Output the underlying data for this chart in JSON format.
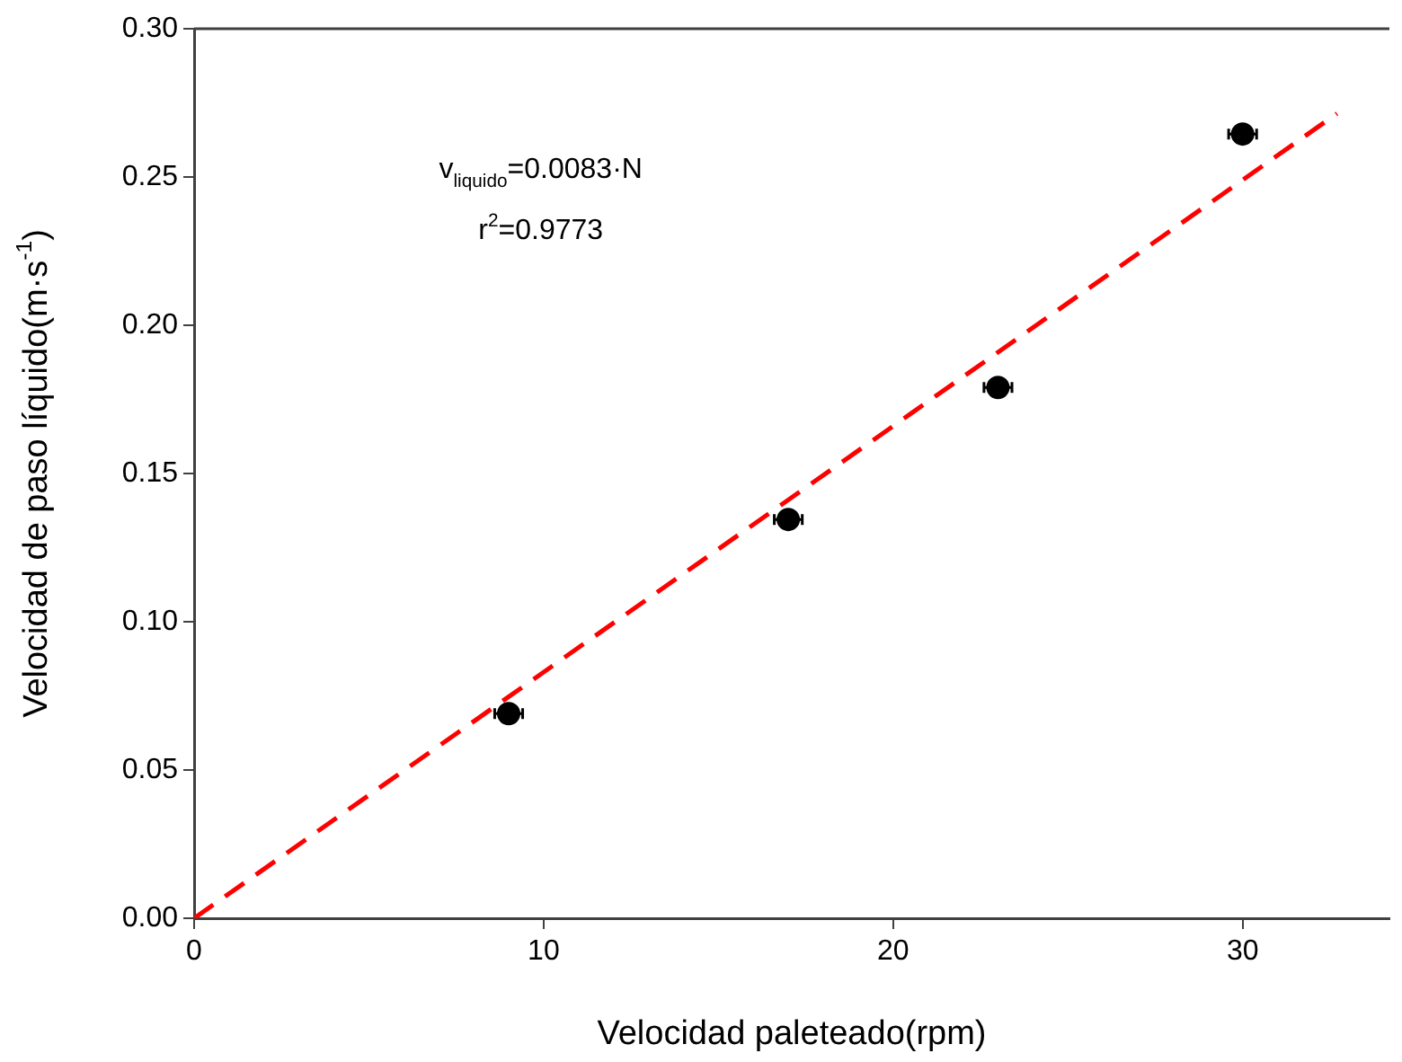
{
  "chart_data": {
    "type": "scatter",
    "xlabel": "Velocidad paleteado(rpm)",
    "ylabel": "Velocidad de paso líquido(m·s$^{-1}$)",
    "annotations": [
      "v$_{liquido}$=0.0083·N",
      "r$^{2}$=0.9773"
    ],
    "xlim": [
      0,
      34.2
    ],
    "xticks": [
      0,
      10,
      20,
      30
    ],
    "ylim": [
      0,
      0.3
    ],
    "yticks": [
      {
        "value": 0,
        "label": "0.00"
      },
      0.05,
      {
        "value": 0.1,
        "label": "0.10"
      },
      0.15,
      {
        "value": 0.2,
        "label": "0.20"
      },
      0.25,
      {
        "value": 0.3,
        "label": "0.30"
      }
    ],
    "marker": "circle",
    "series": [
      {
        "type": "scatter",
        "color": "#000000",
        "x": [
          9,
          17,
          23,
          30
        ],
        "values": [
          0.069,
          0.1345,
          0.179,
          0.2645
        ],
        "xerrors": [
          0.4,
          0.4,
          0.4,
          0.4
        ]
      },
      {
        "type": "line",
        "color": "#ff0000",
        "line_style": "dashed",
        "marker": "none",
        "x": [
          0,
          32.7
        ],
        "values": [
          0,
          0.2714
        ]
      }
    ]
  }
}
